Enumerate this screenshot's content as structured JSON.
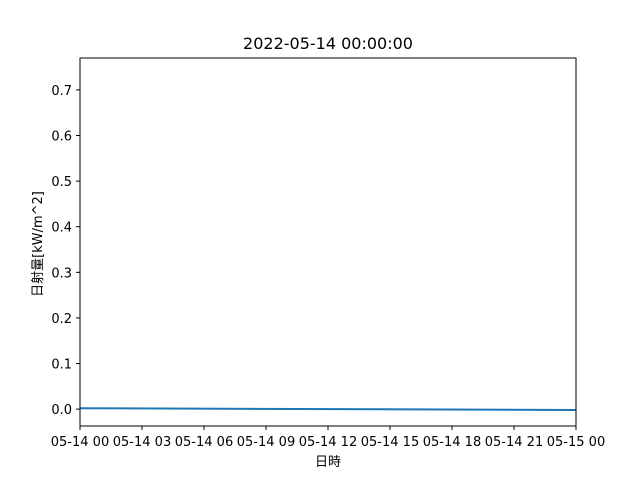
{
  "chart_data": {
    "type": "line",
    "title": "2022-05-14 00:00:00",
    "xlabel": "日時",
    "ylabel": "日射量[kW/m^2]",
    "x_ticks": [
      "05-14 00",
      "05-14 03",
      "05-14 06",
      "05-14 09",
      "05-14 12",
      "05-14 15",
      "05-14 18",
      "05-14 21",
      "05-15 00"
    ],
    "x": [
      "2022-05-14 00:00",
      "2022-05-15 00:00"
    ],
    "xlim": [
      "2022-05-14 00:00",
      "2022-05-15 00:00"
    ],
    "y_ticks": [
      "0.0",
      "0.1",
      "0.2",
      "0.3",
      "0.4",
      "0.5",
      "0.6",
      "0.7"
    ],
    "ylim": [
      -0.037,
      0.77
    ],
    "series": [
      {
        "values": [
          0.002,
          -0.002
        ],
        "color": "#1f77b4"
      }
    ],
    "grid": false
  }
}
